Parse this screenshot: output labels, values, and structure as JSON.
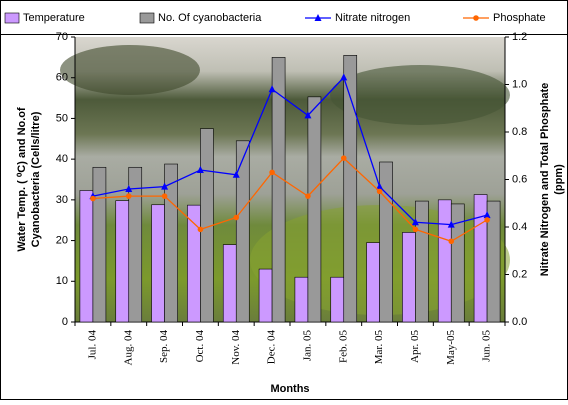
{
  "chart_data": {
    "type": "bar_line",
    "categories": [
      "Jul. 04",
      "Aug. 04",
      "Sep. 04",
      "Oct. 04",
      "Nov. 04",
      "Dec. 04",
      "Jan. 05",
      "Feb. 05",
      "Mar. 05",
      "Apr. 05",
      "May-05",
      "Jun. 05"
    ],
    "series": [
      {
        "name": "Temperature",
        "kind": "bar",
        "color": "#cc99ff",
        "values": [
          32.3,
          29.8,
          28.8,
          28.7,
          19,
          13,
          11,
          11,
          19.5,
          22,
          30,
          31.3
        ]
      },
      {
        "name": "No. Of cyanobacteria",
        "kind": "bar",
        "color": "#999999",
        "values": [
          38,
          38,
          38.8,
          47.5,
          44.5,
          65,
          55.3,
          65.5,
          39.3,
          29.7,
          29,
          29.7
        ]
      },
      {
        "name": "Nitrate nitrogen",
        "kind": "line",
        "marker": "triangle",
        "axis": "y2",
        "color": "#0000ff",
        "values": [
          0.53,
          0.56,
          0.57,
          0.64,
          0.62,
          0.98,
          0.87,
          1.03,
          0.57,
          0.42,
          0.41,
          0.45
        ]
      },
      {
        "name": "Phosphate",
        "kind": "line",
        "marker": "circle",
        "axis": "y2",
        "color": "#ff6600",
        "values": [
          0.52,
          0.53,
          0.53,
          0.39,
          0.44,
          0.63,
          0.53,
          0.69,
          0.55,
          0.39,
          0.34,
          0.43
        ]
      }
    ],
    "x_label": "Months",
    "y_label": [
      "Water Temp. ( ⁰C) and No.of",
      "Cyanobacteria (Cells/litre)"
    ],
    "y2_label": [
      "Nitrate Nitrogen and Total Phosphate",
      "(ppm)"
    ],
    "ylim": [
      0,
      70
    ],
    "yticks": [
      0,
      10,
      20,
      30,
      40,
      50,
      60,
      70
    ],
    "y2lim": [
      0,
      1.2
    ],
    "y2ticks": [
      {
        "value": 0,
        "label": "0.0"
      },
      0.2,
      0.4,
      0.6,
      0.8,
      {
        "value": 1,
        "label": "1.0"
      },
      1.2
    ],
    "legend": "top"
  }
}
